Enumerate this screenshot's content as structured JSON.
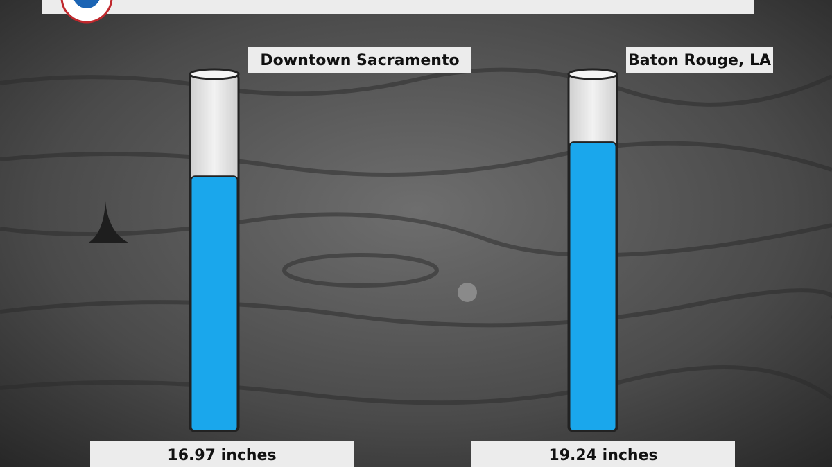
{
  "chart_data": {
    "type": "bar",
    "categories": [
      "Downtown Sacramento",
      "Baton Rouge, LA"
    ],
    "values": [
      16.97,
      19.24
    ],
    "value_labels": [
      "16.97 inches",
      "19.24 inches"
    ],
    "color": "#1aa7ec"
  }
}
